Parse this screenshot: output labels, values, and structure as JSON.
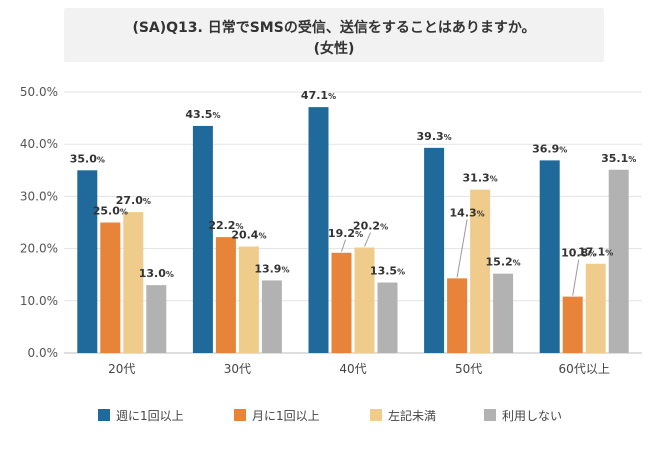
{
  "chart_data": {
    "type": "bar",
    "title": "(SA)Q13. 日常でSMSの受信、送信をすることはありますか。",
    "subtitle": "(女性)",
    "categories": [
      "20代",
      "30代",
      "40代",
      "50代",
      "60代以上"
    ],
    "series": [
      {
        "name": "週に1回以上",
        "color": "#1f6a9a",
        "values": [
          35.0,
          43.5,
          47.1,
          39.3,
          36.9
        ]
      },
      {
        "name": "月に1回以上",
        "color": "#e8833a",
        "values": [
          25.0,
          22.2,
          19.2,
          14.3,
          10.8
        ]
      },
      {
        "name": "左記未満",
        "color": "#f0cc8c",
        "values": [
          27.0,
          20.4,
          20.2,
          31.3,
          17.1
        ]
      },
      {
        "name": "利用しない",
        "color": "#b2b2b2",
        "values": [
          13.0,
          13.9,
          13.5,
          15.2,
          35.1
        ]
      }
    ],
    "ylim": [
      0,
      50
    ],
    "yticks": [
      "0.0%",
      "10.0%",
      "20.0%",
      "30.0%",
      "40.0%",
      "50.0%"
    ],
    "grid": true,
    "legend_position": "bottom"
  }
}
